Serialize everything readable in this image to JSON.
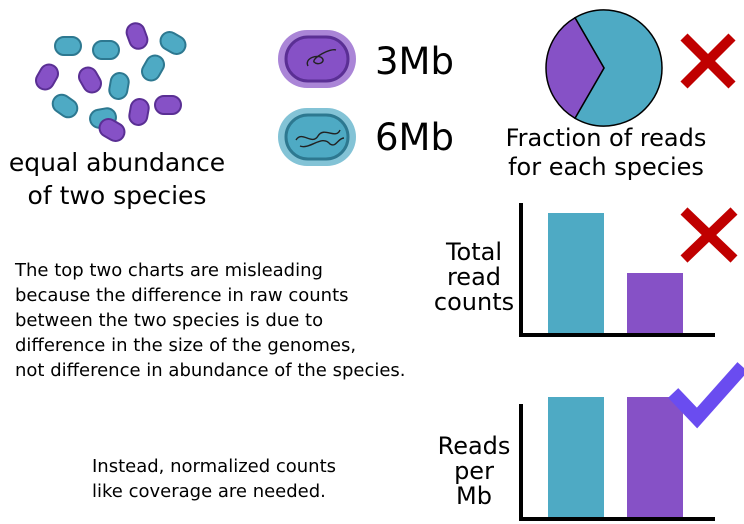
{
  "colors": {
    "species_small": "#8651c6",
    "species_small_dark": "#5a2f94",
    "species_large": "#4eaac4",
    "species_large_dark": "#2d7890",
    "cross": "#c00000",
    "check": "#6a4cf0"
  },
  "cells": {
    "icon": "bacteria-cell-icon",
    "small_species_count": 6,
    "large_species_count": 8
  },
  "caption_abundance": "equal abundance\nof two species",
  "genome_small": {
    "label": "3Mb",
    "icon": "bacterium-small-genome-icon"
  },
  "genome_large": {
    "label": "6Mb",
    "icon": "bacterium-large-genome-icon"
  },
  "caption_fraction": "Fraction of reads\nfor each species",
  "text_misleading": "The top two charts are misleading\nbecause the difference in raw counts\nbetween the two species is due to\ndifference in the size of the genomes,\nnot difference in abundance of the species.",
  "text_normalized": "Instead, normalized counts\nlike coverage are needed.",
  "verdicts": {
    "pie": "cross-icon",
    "total_reads": "cross-icon",
    "reads_per_mb": "check-icon"
  },
  "chart_data": [
    {
      "type": "pie",
      "title": "Fraction of reads\nfor each species",
      "slices": [
        {
          "value": 0.6667,
          "color": "#4eaac4"
        },
        {
          "value": 0.3333,
          "color": "#8651c6"
        }
      ]
    },
    {
      "type": "bar",
      "ylabel": "Total\nread\ncounts",
      "categories": [
        "",
        ""
      ],
      "values": [
        2,
        1
      ],
      "colors": [
        "#4eaac4",
        "#8651c6"
      ],
      "ylim": [
        0,
        2.2
      ]
    },
    {
      "type": "bar",
      "ylabel": "Reads\nper\nMb",
      "categories": [
        "",
        ""
      ],
      "values": [
        1,
        1
      ],
      "colors": [
        "#4eaac4",
        "#8651c6"
      ],
      "ylim": [
        0,
        1.1
      ]
    }
  ]
}
